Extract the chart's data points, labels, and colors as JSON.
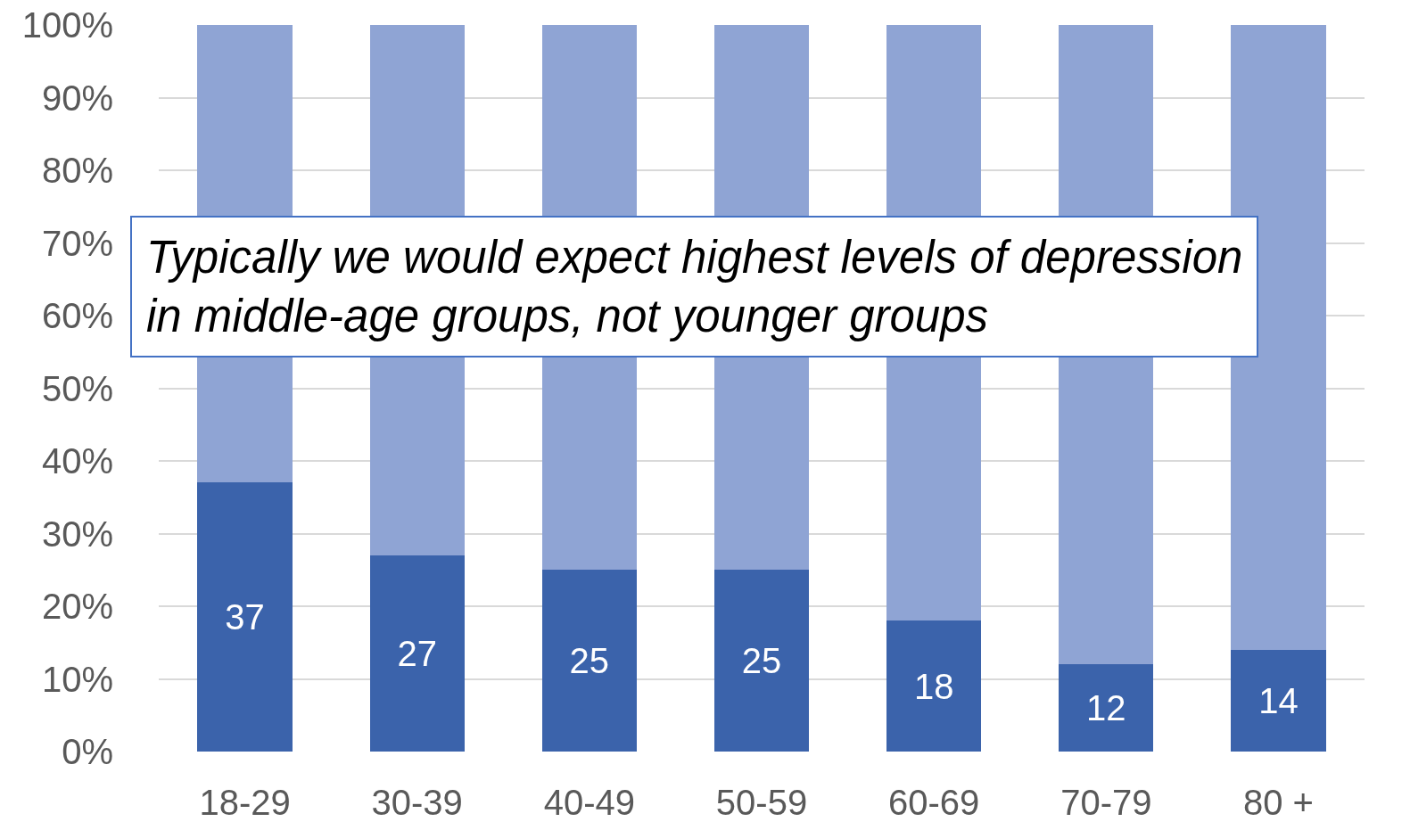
{
  "chart_data": {
    "type": "bar",
    "stacked": true,
    "categories": [
      "18-29",
      "30-39",
      "40-49",
      "50-59",
      "60-69",
      "70-79",
      "80 +"
    ],
    "series": [
      {
        "color": "#3b63ab",
        "values": [
          37,
          27,
          25,
          25,
          18,
          12,
          14
        ],
        "value_labels": [
          "37",
          "27",
          "25",
          "25",
          "18",
          "12",
          "14"
        ]
      },
      {
        "color": "#8fa4d4",
        "values": [
          63,
          73,
          75,
          75,
          82,
          88,
          86
        ]
      }
    ],
    "ylim": [
      0,
      100
    ],
    "yticks": [
      {
        "value": 0,
        "label": "0%"
      },
      {
        "value": 10,
        "label": "10%"
      },
      {
        "value": 20,
        "label": "20%"
      },
      {
        "value": 30,
        "label": "30%"
      },
      {
        "value": 40,
        "label": "40%"
      },
      {
        "value": 50,
        "label": "50%"
      },
      {
        "value": 60,
        "label": "60%"
      },
      {
        "value": 70,
        "label": "70%"
      },
      {
        "value": 80,
        "label": "80%"
      },
      {
        "value": 90,
        "label": "90%"
      },
      {
        "value": 100,
        "label": "100%"
      }
    ],
    "grid": "y",
    "annotations": [
      "Typically we would expect highest levels of depression in middle-age groups, not younger groups"
    ]
  }
}
